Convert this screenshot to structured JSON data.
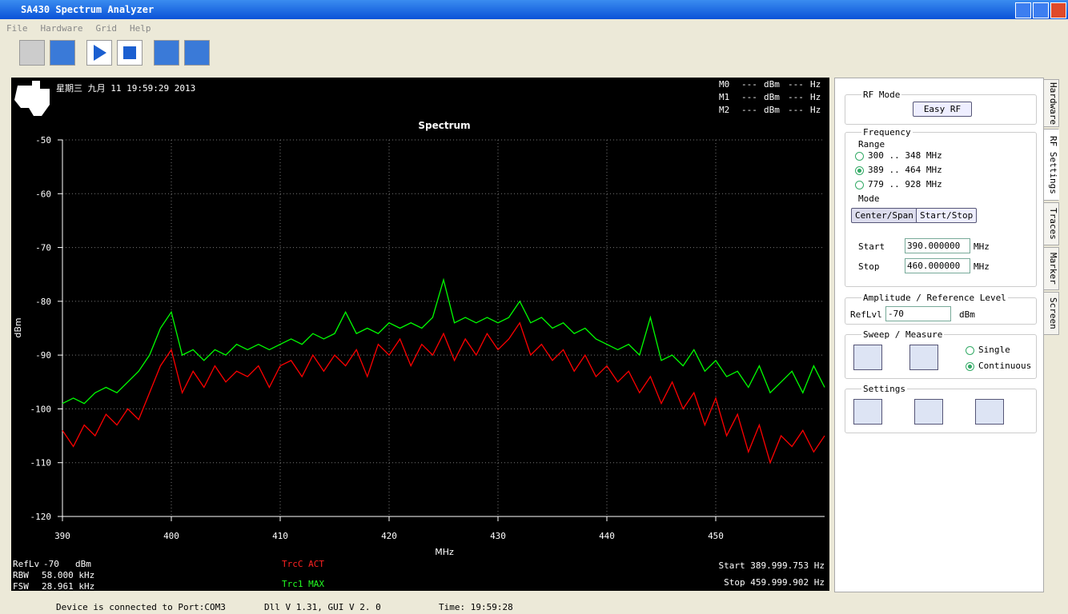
{
  "window": {
    "title": "SA430 Spectrum Analyzer",
    "menu": [
      "File",
      "Hardware",
      "Grid",
      "Help"
    ]
  },
  "overlay": {
    "timestamp": "星期三 九月 11 19:59:29 2013",
    "markers": [
      {
        "name": "M0",
        "level": "---",
        "level_unit": "dBm",
        "freq": "---",
        "freq_unit": "Hz"
      },
      {
        "name": "M1",
        "level": "---",
        "level_unit": "dBm",
        "freq": "---",
        "freq_unit": "Hz"
      },
      {
        "name": "M2",
        "level": "---",
        "level_unit": "dBm",
        "freq": "---",
        "freq_unit": "Hz"
      }
    ],
    "info": [
      [
        "RefLv",
        "-70",
        "dBm"
      ],
      [
        "RBW",
        "58.000 kHz"
      ],
      [
        "FSW",
        "28.961 kHz"
      ]
    ],
    "trace_labels": [
      "TrcC ACT",
      "Trc1 MAX"
    ],
    "start": "Start 389.999.753 Hz",
    "stop": "Stop  459.999.902 Hz"
  },
  "chart_data": {
    "type": "line",
    "title": "Spectrum",
    "x_label": "MHz",
    "y_label": "dBm",
    "x": [
      390,
      391,
      392,
      393,
      394,
      395,
      396,
      397,
      398,
      399,
      400,
      401,
      402,
      403,
      404,
      405,
      406,
      407,
      408,
      409,
      410,
      411,
      412,
      413,
      414,
      415,
      416,
      417,
      418,
      419,
      420,
      421,
      422,
      423,
      424,
      425,
      426,
      427,
      428,
      429,
      430,
      431,
      432,
      433,
      434,
      435,
      436,
      437,
      438,
      439,
      440,
      441,
      442,
      443,
      444,
      445,
      446,
      447,
      448,
      449,
      450,
      451,
      452,
      453,
      454,
      455,
      456,
      457,
      458,
      459,
      460
    ],
    "series": [
      {
        "name": "Trc1 MAX",
        "color": "#00ff00",
        "values": [
          -99,
          -98,
          -99,
          -97,
          -96,
          -97,
          -95,
          -93,
          -90,
          -85,
          -82,
          -90,
          -89,
          -91,
          -89,
          -90,
          -88,
          -89,
          -88,
          -89,
          -88,
          -87,
          -88,
          -86,
          -87,
          -86,
          -82,
          -86,
          -85,
          -86,
          -84,
          -85,
          -84,
          -85,
          -83,
          -76,
          -84,
          -83,
          -84,
          -83,
          -84,
          -83,
          -80,
          -84,
          -83,
          -85,
          -84,
          -86,
          -85,
          -87,
          -88,
          -89,
          -88,
          -90,
          -83,
          -91,
          -90,
          -92,
          -89,
          -93,
          -91,
          -94,
          -93,
          -96,
          -92,
          -97,
          -95,
          -93,
          -97,
          -92,
          -96
        ]
      },
      {
        "name": "TrcC ACT",
        "color": "#ff0000",
        "values": [
          -104,
          -107,
          -103,
          -105,
          -101,
          -103,
          -100,
          -102,
          -97,
          -92,
          -89,
          -97,
          -93,
          -96,
          -92,
          -95,
          -93,
          -94,
          -92,
          -96,
          -92,
          -91,
          -94,
          -90,
          -93,
          -90,
          -92,
          -89,
          -94,
          -88,
          -90,
          -87,
          -92,
          -88,
          -90,
          -86,
          -91,
          -87,
          -90,
          -86,
          -89,
          -87,
          -84,
          -90,
          -88,
          -91,
          -89,
          -93,
          -90,
          -94,
          -92,
          -95,
          -93,
          -97,
          -94,
          -99,
          -95,
          -100,
          -97,
          -103,
          -98,
          -105,
          -101,
          -108,
          -103,
          -110,
          -105,
          -107,
          -104,
          -108,
          -105
        ]
      }
    ],
    "xlim": [
      390,
      460
    ],
    "xticks": [
      390,
      400,
      410,
      420,
      430,
      440,
      450
    ],
    "ylim": [
      -120,
      -50
    ],
    "yticks": [
      -50,
      -60,
      -70,
      -80,
      -90,
      -100,
      -110,
      -120
    ],
    "grid": true
  },
  "panel": {
    "tabs": [
      "Hardware",
      "RF Settings",
      "Traces",
      "Marker",
      "Screen"
    ],
    "rf_mode": {
      "title": "RF Mode",
      "button": "Easy RF"
    },
    "frequency": {
      "title": "Frequency",
      "range_title": "Range",
      "ranges": [
        "300 .. 348 MHz",
        "389 .. 464 MHz",
        "779 .. 928 MHz"
      ],
      "selected": 1,
      "mode_title": "Mode",
      "modes": [
        "Center/Span",
        "Start/Stop"
      ],
      "start_label": "Start",
      "start": "390.000000",
      "stop_label": "Stop",
      "stop": "460.000000",
      "unit": "MHz"
    },
    "amplitude": {
      "title": "Amplitude / Reference Level",
      "label": "RefLvl",
      "value": "-70",
      "unit": "dBm"
    },
    "sweep": {
      "title": "Sweep / Measure",
      "options": [
        "Single",
        "Continuous"
      ],
      "selected": 1
    },
    "settings": {
      "title": "Settings"
    }
  },
  "status": [
    "Device is connected to Port:COM3",
    "Dll V 1.31, GUI V 2. 0",
    "Time: 19:59:28"
  ]
}
